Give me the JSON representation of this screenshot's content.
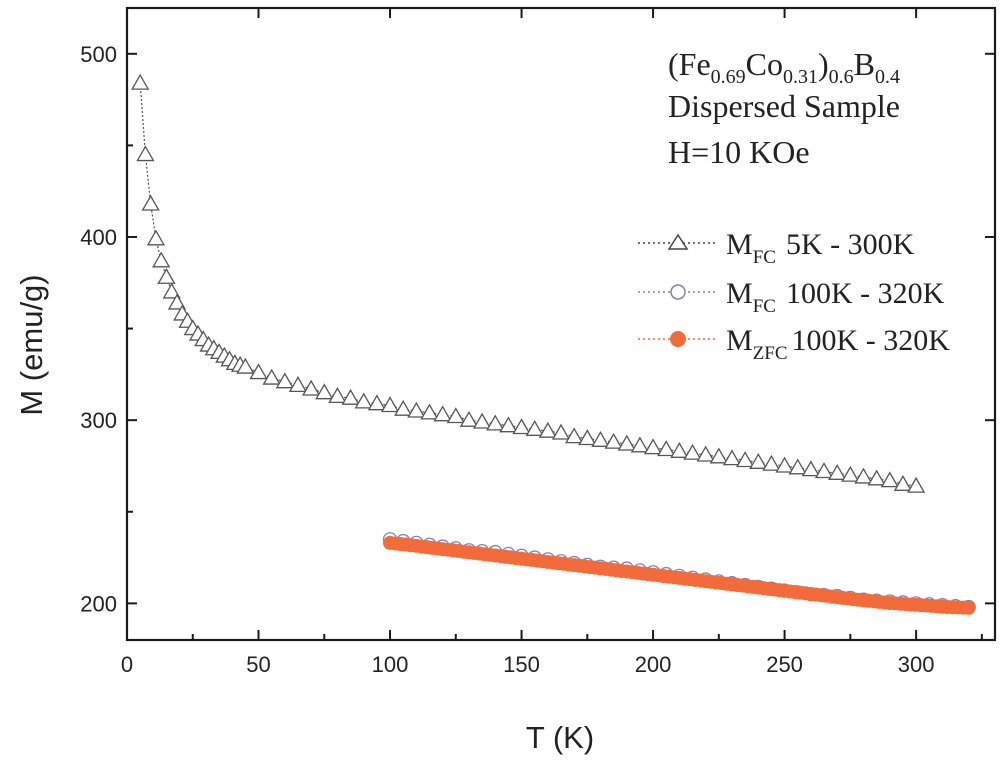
{
  "chart_data": {
    "type": "scatter",
    "title": "",
    "xlabel": "T (K)",
    "ylabel": "M (emu/g)",
    "xlim": [
      0,
      330
    ],
    "ylim": [
      180,
      525
    ],
    "xticks": [
      0,
      50,
      100,
      150,
      200,
      250,
      300
    ],
    "yticks": [
      200,
      300,
      400,
      500
    ],
    "annotation": {
      "line1": {
        "p1": "(Fe",
        "s1": "0.69",
        "p2": "Co",
        "s2": "0.31",
        "p3": ")",
        "s3": "0.6",
        "p4": "B",
        "s4": "0.4"
      },
      "line2": "Dispersed Sample",
      "line3": "H=10 KOe"
    },
    "series": [
      {
        "name": "M_FC 5K - 300K",
        "legend_main": "M",
        "legend_sub": "FC",
        "legend_rest": "5K - 300K",
        "marker": "triangle-open",
        "color": "#555555",
        "x": [
          5,
          7,
          9,
          11,
          13,
          15,
          17,
          19,
          21,
          23,
          25,
          27,
          29,
          31,
          33,
          35,
          37,
          39,
          41,
          43,
          45,
          50,
          55,
          60,
          65,
          70,
          75,
          80,
          85,
          90,
          95,
          100,
          105,
          110,
          115,
          120,
          125,
          130,
          135,
          140,
          145,
          150,
          155,
          160,
          165,
          170,
          175,
          180,
          185,
          190,
          195,
          200,
          205,
          210,
          215,
          220,
          225,
          230,
          235,
          240,
          245,
          250,
          255,
          260,
          265,
          270,
          275,
          280,
          285,
          290,
          295,
          300
        ],
        "y": [
          484,
          445,
          418,
          399,
          387,
          378,
          370,
          364,
          358,
          354,
          350,
          347,
          344,
          341,
          339,
          337,
          335,
          333,
          331,
          330,
          329,
          326,
          323,
          321,
          319,
          317,
          315,
          313,
          312,
          310,
          309,
          308,
          306,
          305,
          304,
          303,
          302,
          300,
          299,
          298,
          297,
          296,
          295,
          294,
          293,
          291,
          290,
          289,
          288,
          287,
          286,
          285,
          284,
          283,
          282,
          281,
          280,
          279,
          278,
          277,
          276,
          275,
          274,
          273,
          272,
          271,
          270,
          269,
          268,
          267,
          265,
          264
        ]
      },
      {
        "name": "M_FC 100K - 320K",
        "legend_main": "M",
        "legend_sub": "FC",
        "legend_rest": "100K - 320K",
        "marker": "circle-open",
        "color": "#8a7fb0",
        "x": [
          100,
          105,
          110,
          115,
          120,
          125,
          130,
          135,
          140,
          145,
          150,
          155,
          160,
          165,
          170,
          175,
          180,
          185,
          190,
          195,
          200,
          205,
          210,
          215,
          220,
          225,
          230,
          235,
          240,
          245,
          250,
          255,
          260,
          265,
          270,
          275,
          280,
          285,
          290,
          295,
          300,
          305,
          310,
          315,
          320
        ],
        "y": [
          235,
          234,
          233,
          232,
          231,
          230,
          229,
          228.5,
          228,
          227,
          226,
          225,
          224,
          223,
          222,
          221,
          220,
          219.5,
          219,
          218,
          217,
          216,
          215,
          214,
          213,
          212,
          211,
          210,
          209,
          208,
          207,
          206,
          205,
          204.5,
          204,
          203,
          202,
          201.5,
          201,
          200.5,
          200,
          199.5,
          199,
          198.5,
          198
        ]
      },
      {
        "name": "M_ZFC 100K - 320K",
        "legend_main": "M",
        "legend_sub": "ZFC",
        "legend_rest": "100K - 320K",
        "marker": "circle-filled",
        "color": "#f26b3a",
        "x": [
          100,
          102,
          104,
          106,
          108,
          110,
          112,
          114,
          116,
          118,
          120,
          122,
          124,
          126,
          128,
          130,
          132,
          134,
          136,
          138,
          140,
          142,
          144,
          146,
          148,
          150,
          152,
          154,
          156,
          158,
          160,
          162,
          164,
          166,
          168,
          170,
          172,
          174,
          176,
          178,
          180,
          182,
          184,
          186,
          188,
          190,
          192,
          194,
          196,
          198,
          200,
          202,
          204,
          206,
          208,
          210,
          212,
          214,
          216,
          218,
          220,
          222,
          224,
          226,
          228,
          230,
          232,
          234,
          236,
          238,
          240,
          242,
          244,
          246,
          248,
          250,
          252,
          254,
          256,
          258,
          260,
          262,
          264,
          266,
          268,
          270,
          272,
          274,
          276,
          278,
          280,
          282,
          284,
          286,
          288,
          290,
          292,
          294,
          296,
          298,
          300,
          302,
          304,
          306,
          308,
          310,
          312,
          314,
          316,
          318,
          320
        ],
        "y": [
          233,
          232.7,
          232.4,
          232.1,
          231.7,
          231.4,
          231,
          230.7,
          230.3,
          230,
          229.6,
          229.3,
          228.9,
          228.6,
          228.2,
          227.9,
          227.5,
          227.2,
          226.8,
          226.5,
          226.1,
          225.8,
          225.4,
          225.1,
          224.7,
          224.4,
          224,
          223.7,
          223.3,
          223,
          222.6,
          222.3,
          221.9,
          221.6,
          221.2,
          220.9,
          220.5,
          220.2,
          219.8,
          219.5,
          219.1,
          218.8,
          218.4,
          218.1,
          217.7,
          217.4,
          217,
          216.7,
          216.3,
          216,
          215.6,
          215.3,
          214.9,
          214.6,
          214.2,
          213.9,
          213.5,
          213.2,
          212.8,
          212.5,
          212.1,
          211.8,
          211.4,
          211.1,
          210.7,
          210.4,
          210,
          209.7,
          209.3,
          209,
          208.6,
          208.3,
          207.9,
          207.6,
          207.2,
          206.9,
          206.5,
          206.2,
          205.8,
          205.5,
          205.1,
          204.8,
          204.4,
          204.1,
          203.7,
          203.4,
          203,
          202.7,
          202.3,
          202,
          201.7,
          201.4,
          201.1,
          200.8,
          200.5,
          200.2,
          200,
          199.8,
          199.6,
          199.4,
          199.2,
          199,
          198.8,
          198.6,
          198.4,
          198.2,
          198,
          197.9,
          197.8,
          197.7,
          197.6
        ]
      }
    ]
  }
}
